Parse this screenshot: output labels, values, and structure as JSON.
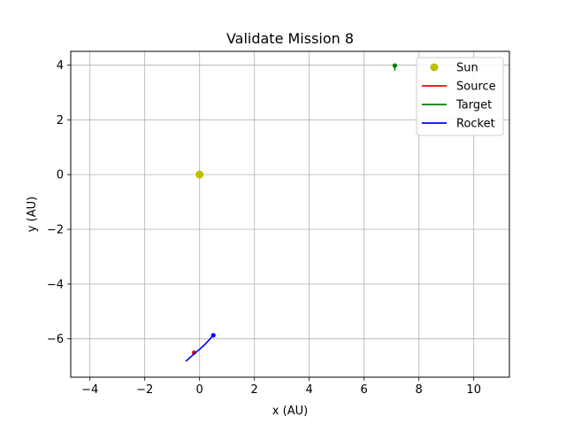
{
  "chart_data": {
    "type": "line",
    "title": "Validate Mission 8",
    "xlabel": "x (AU)",
    "ylabel": "y (AU)",
    "xlim": [
      -4.7,
      11.3
    ],
    "ylim": [
      -7.4,
      4.5
    ],
    "xticks": [
      -4,
      -2,
      0,
      2,
      4,
      6,
      8,
      10
    ],
    "yticks": [
      -6,
      -4,
      -2,
      0,
      2,
      4
    ],
    "grid": true,
    "legend_position": "top-right",
    "series": [
      {
        "name": "Sun",
        "color": "#bfbf00",
        "kind": "marker",
        "points": [
          [
            0,
            0
          ]
        ]
      },
      {
        "name": "Source",
        "color": "#ff0000",
        "kind": "line",
        "points": [
          [
            -0.2,
            -6.5
          ]
        ],
        "end_marker": [
          -0.2,
          -6.5
        ]
      },
      {
        "name": "Target",
        "color": "#008000",
        "kind": "line",
        "points": [
          [
            7.12,
            3.98
          ],
          [
            7.12,
            3.8
          ]
        ],
        "end_marker": [
          7.12,
          3.98
        ]
      },
      {
        "name": "Rocket",
        "color": "#0000ff",
        "kind": "line",
        "points": [
          [
            -0.5,
            -6.82
          ],
          [
            -0.35,
            -6.68
          ],
          [
            -0.2,
            -6.55
          ],
          [
            0.0,
            -6.38
          ],
          [
            0.2,
            -6.2
          ],
          [
            0.5,
            -5.87
          ]
        ],
        "end_marker": [
          0.5,
          -5.87
        ]
      }
    ]
  }
}
